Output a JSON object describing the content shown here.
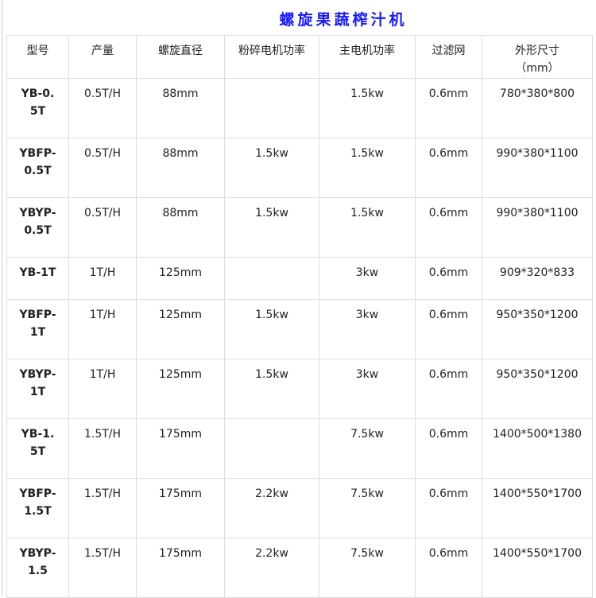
{
  "title": "螺旋果蔬榨汁机",
  "headers": [
    "型号",
    "产量",
    "螺旋直径",
    "粉碎电机功率",
    "主电机功率",
    "过滤网",
    "外形尺寸 （mm）"
  ],
  "rows": [
    [
      "YB-0.5T",
      "0.5T/H",
      "88mm",
      "",
      "1.5kw",
      "0.6mm",
      "780*380*800"
    ],
    [
      "YBFP-0.5T",
      "0.5T/H",
      "88mm",
      "1.5kw",
      "1.5kw",
      "0.6mm",
      "990*380*1100"
    ],
    [
      "YBYP-0.5T",
      "0.5T/H",
      "88mm",
      "1.5kw",
      "1.5kw",
      "0.6mm",
      "990*380*1100"
    ],
    [
      "YB-1T",
      "1T/H",
      "125mm",
      "",
      "3kw",
      "0.6mm",
      "909*320*833"
    ],
    [
      "YBFP-1T",
      "1T/H",
      "125mm",
      "1.5kw",
      "3kw",
      "0.6mm",
      "950*350*1200"
    ],
    [
      "YBYP-1T",
      "1T/H",
      "125mm",
      "1.5kw",
      "3kw",
      "0.6mm",
      "950*350*1200"
    ],
    [
      "YB-1.5T",
      "1.5T/H",
      "175mm",
      "",
      "7.5kw",
      "0.6mm",
      "1400*500*1380"
    ],
    [
      "YBFP-1.5T",
      "1.5T/H",
      "175mm",
      "2.2kw",
      "7.5kw",
      "0.6mm",
      "1400*550*1700"
    ],
    [
      "YBYP-1.5",
      "1.5T/H",
      "175mm",
      "2.2kw",
      "7.5kw",
      "0.6mm",
      "1400*550*1700"
    ]
  ],
  "colors": {
    "title": "#1a1aff",
    "border": "#dddddd"
  }
}
